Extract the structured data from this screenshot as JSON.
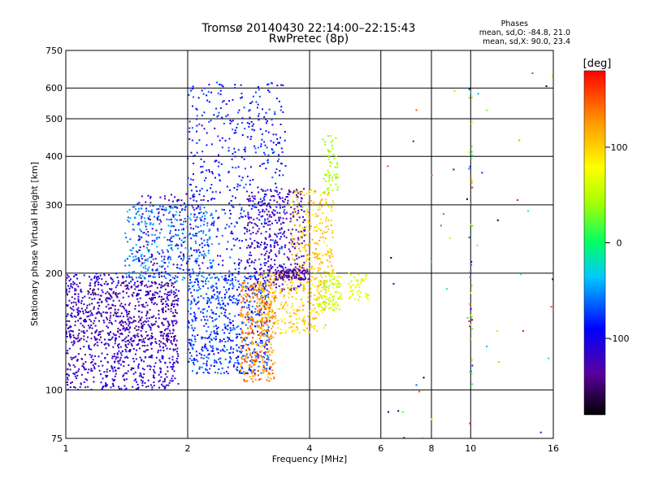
{
  "header": {
    "title_line1": "Tromsø 20140430 22:14:00–22:15:43",
    "title_line2": "RwPretec (8p)",
    "stats_title": "Phases",
    "stats_o": "mean, sd,O:  -84.8,  21.0",
    "stats_x": "mean, sd,X:  90.0,  23.4"
  },
  "colorbar": {
    "label": "[deg]",
    "ticks": [
      {
        "value": 100,
        "label": "100"
      },
      {
        "value": 0,
        "label": "0"
      },
      {
        "value": -100,
        "label": "-100"
      }
    ],
    "range": [
      -180,
      180
    ]
  },
  "chart_data": {
    "type": "scatter",
    "title": "Tromsø 20140430 22:14:00–22:15:43",
    "subtitle": "RwPretec (8p)",
    "xlabel": "Frequency [MHz]",
    "ylabel": "Stationary phase Virtual Height [km]",
    "x_scale": "log",
    "y_scale": "log",
    "xlim": [
      1,
      16
    ],
    "ylim": [
      75,
      750
    ],
    "x_ticks": [
      1,
      2,
      4,
      6,
      8,
      10,
      16
    ],
    "y_ticks": [
      75,
      100,
      200,
      300,
      400,
      500,
      600,
      750
    ],
    "grid": true,
    "color_by": "phase [deg]",
    "clusters": [
      {
        "x_range": [
          1.0,
          1.9
        ],
        "y_range": [
          100,
          200
        ],
        "phase_range": [
          -125,
          -95
        ],
        "count": 900
      },
      {
        "x_range": [
          1.0,
          1.9
        ],
        "y_range": [
          130,
          190
        ],
        "phase_range": [
          -150,
          -120
        ],
        "count": 280
      },
      {
        "x_range": [
          1.4,
          2.3
        ],
        "y_range": [
          190,
          300
        ],
        "phase_range": [
          -70,
          -35
        ],
        "count": 320
      },
      {
        "x_range": [
          1.5,
          2.2
        ],
        "y_range": [
          200,
          320
        ],
        "phase_range": [
          -130,
          -95
        ],
        "count": 160
      },
      {
        "x_range": [
          2.0,
          3.2
        ],
        "y_range": [
          110,
          200
        ],
        "phase_range": [
          -95,
          -55
        ],
        "count": 650
      },
      {
        "x_range": [
          2.0,
          3.5
        ],
        "y_range": [
          200,
          620
        ],
        "phase_range": [
          -110,
          -60
        ],
        "count": 500
      },
      {
        "x_range": [
          2.8,
          3.9
        ],
        "y_range": [
          180,
          330
        ],
        "phase_range": [
          -135,
          -100
        ],
        "count": 380
      },
      {
        "x_range": [
          2.7,
          3.3
        ],
        "y_range": [
          105,
          190
        ],
        "phase_range": [
          110,
          160
        ],
        "count": 320
      },
      {
        "x_range": [
          3.0,
          4.4
        ],
        "y_range": [
          140,
          200
        ],
        "phase_range": [
          80,
          125
        ],
        "count": 280
      },
      {
        "x_range": [
          3.6,
          4.6
        ],
        "y_range": [
          200,
          330
        ],
        "phase_range": [
          85,
          125
        ],
        "count": 220
      },
      {
        "x_range": [
          3.3,
          4.0
        ],
        "y_range": [
          192,
          205
        ],
        "phase_range": [
          -145,
          -120
        ],
        "count": 90
      },
      {
        "x_range": [
          4.2,
          4.8
        ],
        "y_range": [
          160,
          200
        ],
        "phase_range": [
          40,
          80
        ],
        "count": 110
      },
      {
        "x_range": [
          4.3,
          4.7
        ],
        "y_range": [
          320,
          460
        ],
        "phase_range": [
          30,
          60
        ],
        "count": 60
      },
      {
        "x_range": [
          5.0,
          5.6
        ],
        "y_range": [
          170,
          200
        ],
        "phase_range": [
          50,
          90
        ],
        "count": 45
      },
      {
        "x_range": [
          6.0,
          16.0
        ],
        "y_range": [
          75,
          700
        ],
        "phase_range": [
          -180,
          180
        ],
        "count": 45
      },
      {
        "x_range": [
          9.9,
          10.1
        ],
        "y_range": [
          100,
          620
        ],
        "phase_range": [
          -130,
          180
        ],
        "count": 45
      }
    ]
  }
}
